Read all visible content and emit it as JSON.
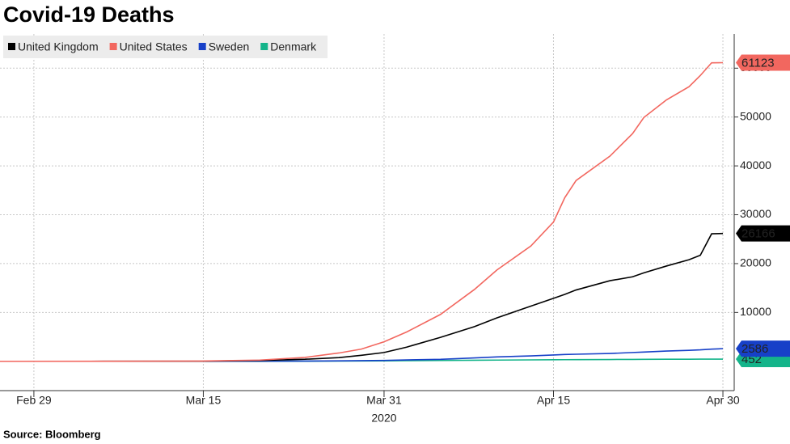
{
  "chart_data": {
    "type": "line",
    "title": "Covid-19 Deaths",
    "source": "Source: Bloomberg",
    "x": [
      "2020-02-26",
      "2020-03-05",
      "2020-03-15",
      "2020-03-20",
      "2020-03-24",
      "2020-03-27",
      "2020-03-29",
      "2020-03-31",
      "2020-04-02",
      "2020-04-05",
      "2020-04-08",
      "2020-04-10",
      "2020-04-13",
      "2020-04-15",
      "2020-04-16",
      "2020-04-17",
      "2020-04-20",
      "2020-04-22",
      "2020-04-23",
      "2020-04-25",
      "2020-04-27",
      "2020-04-28",
      "2020-04-29",
      "2020-04-30"
    ],
    "x_year_label": "2020",
    "series": [
      {
        "name": "United Kingdom",
        "color": "#000000",
        "values": [
          0,
          0,
          21,
          177,
          422,
          760,
          1230,
          1800,
          2900,
          4900,
          7100,
          8900,
          11300,
          12900,
          13700,
          14600,
          16500,
          17300,
          18100,
          19500,
          20800,
          21700,
          26100,
          26166
        ]
      },
      {
        "name": "United States",
        "color": "#f2675f",
        "values": [
          0,
          11,
          60,
          250,
          800,
          1700,
          2500,
          4000,
          6000,
          9600,
          14700,
          18700,
          23600,
          28500,
          33500,
          37000,
          42000,
          46600,
          49900,
          53500,
          56200,
          58500,
          61100,
          61123
        ]
      },
      {
        "name": "Sweden",
        "color": "#1740c8",
        "values": [
          0,
          0,
          3,
          20,
          50,
          90,
          130,
          180,
          280,
          400,
          690,
          900,
          1100,
          1300,
          1400,
          1450,
          1600,
          1800,
          1900,
          2100,
          2250,
          2350,
          2500,
          2586
        ]
      },
      {
        "name": "Denmark",
        "color": "#14b48a",
        "values": [
          0,
          0,
          2,
          10,
          30,
          60,
          80,
          100,
          130,
          180,
          220,
          250,
          290,
          320,
          330,
          340,
          370,
          390,
          400,
          420,
          430,
          440,
          450,
          452
        ]
      }
    ],
    "xlim": [
      "2020-02-26",
      "2020-05-01"
    ],
    "xticks": [
      {
        "value": "2020-02-29",
        "label": "Feb 29"
      },
      {
        "value": "2020-03-15",
        "label": "Mar 15"
      },
      {
        "value": "2020-03-31",
        "label": "Mar 31"
      },
      {
        "value": "2020-04-15",
        "label": "Apr 15"
      },
      {
        "value": "2020-04-30",
        "label": "Apr 30"
      }
    ],
    "ylim": [
      -6000,
      67000
    ],
    "yticks": [
      10000,
      20000,
      30000,
      40000,
      50000,
      60000
    ],
    "grid": true,
    "legend": "top-left"
  }
}
